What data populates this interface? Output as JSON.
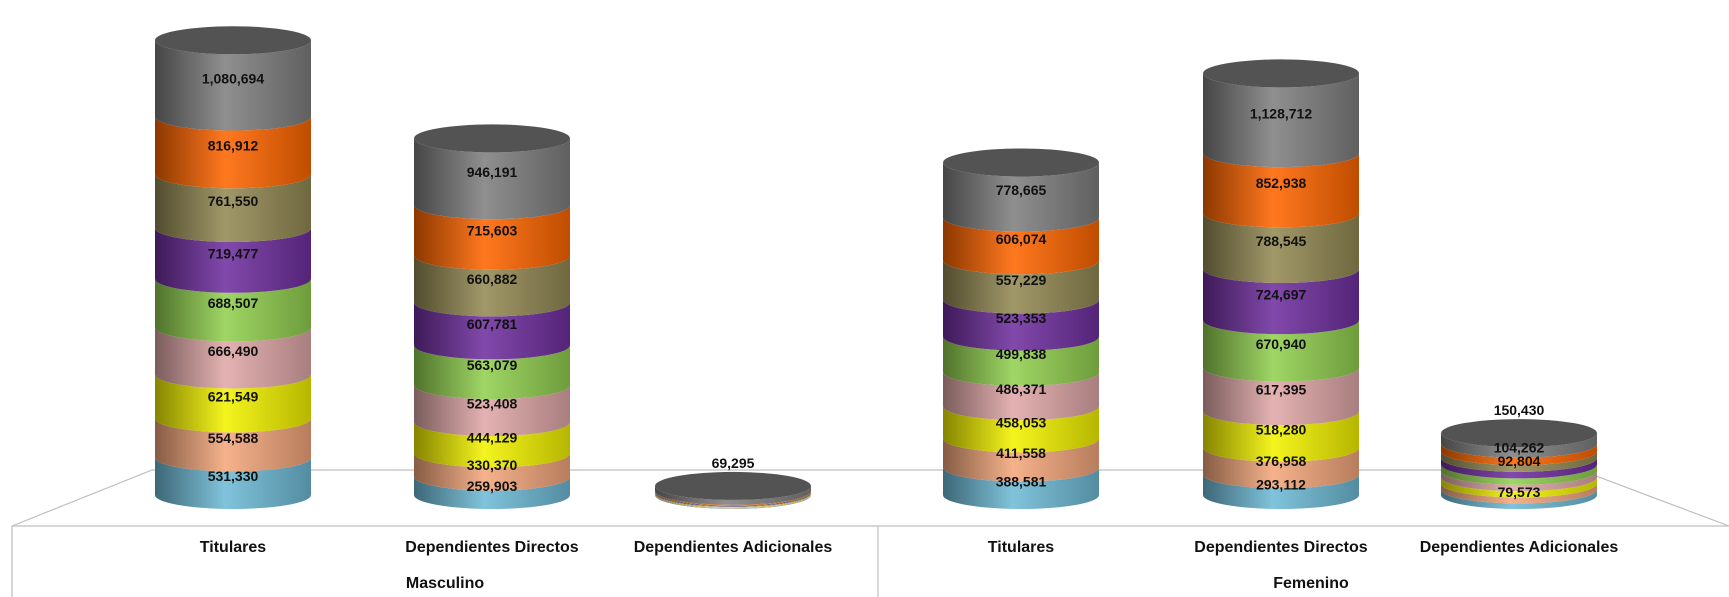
{
  "chart_data": {
    "type": "bar",
    "stacked": true,
    "three_d": "cylinder",
    "groups": [
      {
        "name": "Masculino",
        "categories": [
          {
            "name": "Titulares",
            "values": [
              531330,
              554588,
              621549,
              666490,
              688507,
              719477,
              761550,
              816912,
              1080694
            ],
            "labels": [
              "531,330",
              "554,588",
              "621,549",
              "666,490",
              "688,507",
              "719,477",
              "761,550",
              "816,912",
              "1,080,694"
            ]
          },
          {
            "name": "Dependientes Directos",
            "values": [
              259903,
              330370,
              444129,
              523408,
              563079,
              607781,
              660882,
              715603,
              946191
            ],
            "labels": [
              "259,903",
              "330,370",
              "444,129",
              "523,408",
              "563,079",
              "607,781",
              "660,882",
              "715,603",
              "946,191"
            ]
          },
          {
            "name": "Dependientes Adicionales",
            "values": [
              6000,
              6500,
              7000,
              7200,
              7500,
              7800,
              8300,
              8800,
              69295
            ],
            "labels": [
              "",
              "",
              "",
              "",
              "",
              "",
              "",
              "",
              "69,295"
            ],
            "label_above": true
          }
        ]
      },
      {
        "name": "Femenino",
        "categories": [
          {
            "name": "Titulares",
            "values": [
              388581,
              411558,
              458053,
              486371,
              499838,
              523353,
              557229,
              606074,
              778665
            ],
            "labels": [
              "388,581",
              "411,558",
              "458,053",
              "486,371",
              "499,838",
              "523,353",
              "557,229",
              "606,074",
              "778,665"
            ]
          },
          {
            "name": "Dependientes Directos",
            "values": [
              293112,
              376958,
              518280,
              617395,
              670940,
              724697,
              788545,
              852938,
              1128712
            ],
            "labels": [
              "293,112",
              "376,958",
              "518,280",
              "617,395",
              "670,940",
              "724,697",
              "788,545",
              "852,938",
              "1,128,712"
            ]
          },
          {
            "name": "Dependientes Adicionales",
            "values": [
              79573,
              85000,
              88000,
              90000,
              91000,
              92804,
              96000,
              104262,
              150430
            ],
            "labels": [
              "79,573",
              "",
              "",
              "",
              "",
              "92,804",
              "",
              "104,262",
              "150,430"
            ],
            "label_above": true
          }
        ]
      }
    ],
    "segment_colors": [
      "#6fbbd6",
      "#f4a77c",
      "#f2f200",
      "#e0a8a8",
      "#92d050",
      "#7030a0",
      "#948a54",
      "#ff6600",
      "#808080"
    ],
    "legend": "none",
    "grid": false
  }
}
